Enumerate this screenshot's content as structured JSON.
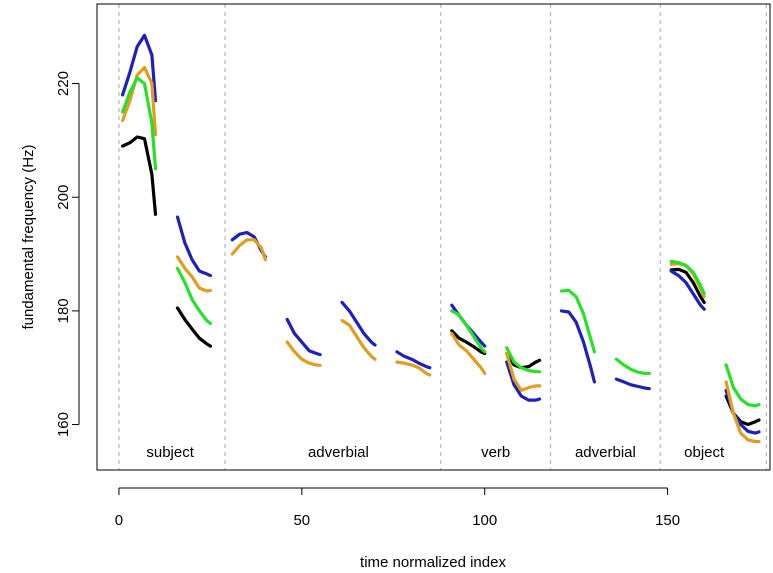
{
  "chart_data": {
    "type": "line",
    "xlabel": "time normalized index",
    "ylabel": "fundamental frequency (Hz)",
    "xlim": [
      -6,
      178
    ],
    "ylim": [
      152,
      234
    ],
    "x_ticks": [
      0,
      50,
      100,
      150
    ],
    "y_ticks": [
      160,
      180,
      200,
      220
    ],
    "segment_boundaries": [
      0,
      29,
      88,
      118,
      148,
      177
    ],
    "segments": [
      {
        "label": "subject",
        "center": 14
      },
      {
        "label": "adverbial",
        "center": 60
      },
      {
        "label": "verb",
        "center": 103
      },
      {
        "label": "adverbial",
        "center": 133
      },
      {
        "label": "object",
        "center": 160
      }
    ],
    "series": [
      {
        "color": "#000000",
        "pieces": [
          [
            [
              1,
              209
            ],
            [
              3,
              209.6
            ],
            [
              5,
              210.6
            ],
            [
              7,
              210.3
            ],
            [
              9,
              204
            ],
            [
              10,
              197
            ]
          ],
          [
            [
              16,
              180.5
            ],
            [
              18,
              178.5
            ],
            [
              20,
              176.8
            ],
            [
              22,
              175.2
            ],
            [
              24,
              174.2
            ],
            [
              25,
              173.8
            ]
          ],
          [
            [
              91,
              176.5
            ],
            [
              93,
              175.2
            ],
            [
              95,
              174.5
            ],
            [
              97,
              173.7
            ],
            [
              99,
              172.8
            ],
            [
              100,
              172.5
            ]
          ],
          [
            [
              106,
              172.5
            ],
            [
              108,
              170.5
            ],
            [
              110,
              170
            ],
            [
              112,
              170.2
            ],
            [
              114,
              171
            ],
            [
              115,
              171.3
            ]
          ],
          [
            [
              151,
              187.2
            ],
            [
              153,
              187.3
            ],
            [
              155,
              186.8
            ],
            [
              157,
              185
            ],
            [
              159,
              182.5
            ],
            [
              160,
              181.5
            ]
          ],
          [
            [
              166,
              165
            ],
            [
              168,
              162
            ],
            [
              170,
              160.5
            ],
            [
              172,
              160
            ],
            [
              174,
              160.5
            ],
            [
              175,
              160.8
            ]
          ]
        ]
      },
      {
        "color": "#1f1fbf",
        "pieces": [
          [
            [
              1,
              218
            ],
            [
              3,
              222
            ],
            [
              5,
              226.5
            ],
            [
              7,
              228.5
            ],
            [
              9,
              225
            ],
            [
              10,
              217
            ]
          ],
          [
            [
              16,
              196.5
            ],
            [
              18,
              192
            ],
            [
              20,
              189
            ],
            [
              22,
              187
            ],
            [
              24,
              186.5
            ],
            [
              25,
              186.2
            ]
          ],
          [
            [
              31,
              192.5
            ],
            [
              33,
              193.5
            ],
            [
              35,
              193.8
            ],
            [
              37,
              193
            ],
            [
              39,
              190.5
            ],
            [
              40,
              189.5
            ]
          ],
          [
            [
              46,
              178.5
            ],
            [
              48,
              176
            ],
            [
              50,
              174.5
            ],
            [
              52,
              173
            ],
            [
              54,
              172.5
            ],
            [
              55,
              172.3
            ]
          ],
          [
            [
              61,
              181.5
            ],
            [
              63,
              180
            ],
            [
              65,
              178
            ],
            [
              67,
              176
            ],
            [
              69,
              174.5
            ],
            [
              70,
              174
            ]
          ],
          [
            [
              76,
              172.8
            ],
            [
              78,
              172
            ],
            [
              80,
              171.5
            ],
            [
              82,
              170.8
            ],
            [
              84,
              170.2
            ],
            [
              85,
              170
            ]
          ],
          [
            [
              91,
              181
            ],
            [
              93,
              179.2
            ],
            [
              95,
              177.5
            ],
            [
              97,
              176
            ],
            [
              99,
              174.5
            ],
            [
              100,
              173.8
            ]
          ],
          [
            [
              106,
              171
            ],
            [
              108,
              167
            ],
            [
              110,
              165
            ],
            [
              112,
              164.3
            ],
            [
              114,
              164.3
            ],
            [
              115,
              164.5
            ]
          ],
          [
            [
              121,
              180
            ],
            [
              123,
              179.8
            ],
            [
              125,
              178
            ],
            [
              127,
              174.5
            ],
            [
              129,
              170
            ],
            [
              130,
              167.5
            ]
          ],
          [
            [
              136,
              168
            ],
            [
              138,
              167.5
            ],
            [
              140,
              167
            ],
            [
              142,
              166.7
            ],
            [
              144,
              166.4
            ],
            [
              145,
              166.3
            ]
          ],
          [
            [
              151,
              187
            ],
            [
              153,
              186.2
            ],
            [
              155,
              185
            ],
            [
              157,
              183
            ],
            [
              159,
              181
            ],
            [
              160,
              180.3
            ]
          ],
          [
            [
              166,
              166
            ],
            [
              168,
              162
            ],
            [
              170,
              160
            ],
            [
              172,
              158.8
            ],
            [
              174,
              158.5
            ],
            [
              175,
              158.7
            ]
          ]
        ]
      },
      {
        "color": "#e39d1c",
        "pieces": [
          [
            [
              1,
              213.5
            ],
            [
              3,
              217
            ],
            [
              5,
              221.5
            ],
            [
              7,
              222.8
            ],
            [
              9,
              220
            ],
            [
              10,
              211
            ]
          ],
          [
            [
              16,
              189.5
            ],
            [
              18,
              187.5
            ],
            [
              20,
              186
            ],
            [
              22,
              184
            ],
            [
              24,
              183.5
            ],
            [
              25,
              183.6
            ]
          ],
          [
            [
              31,
              190
            ],
            [
              33,
              191.5
            ],
            [
              35,
              192.5
            ],
            [
              37,
              192.5
            ],
            [
              39,
              191
            ],
            [
              40,
              189
            ]
          ],
          [
            [
              46,
              174.5
            ],
            [
              48,
              172.8
            ],
            [
              50,
              171.5
            ],
            [
              52,
              170.8
            ],
            [
              54,
              170.5
            ],
            [
              55,
              170.4
            ]
          ],
          [
            [
              61,
              178.3
            ],
            [
              63,
              177.5
            ],
            [
              65,
              175.5
            ],
            [
              67,
              173.5
            ],
            [
              69,
              172
            ],
            [
              70,
              171.5
            ]
          ],
          [
            [
              76,
              171
            ],
            [
              78,
              170.8
            ],
            [
              80,
              170.5
            ],
            [
              82,
              170
            ],
            [
              84,
              169
            ],
            [
              85,
              168.7
            ]
          ],
          [
            [
              91,
              176
            ],
            [
              93,
              174
            ],
            [
              95,
              173
            ],
            [
              97,
              171.5
            ],
            [
              99,
              170
            ],
            [
              100,
              169
            ]
          ],
          [
            [
              106,
              172.5
            ],
            [
              108,
              168
            ],
            [
              110,
              166
            ],
            [
              112,
              166.5
            ],
            [
              114,
              166.8
            ],
            [
              115,
              166.8
            ]
          ],
          [
            [
              151,
              188.2
            ],
            [
              153,
              188.3
            ],
            [
              155,
              188
            ],
            [
              157,
              186.5
            ],
            [
              159,
              184
            ],
            [
              160,
              182.5
            ]
          ],
          [
            [
              166,
              167.5
            ],
            [
              168,
              162
            ],
            [
              170,
              158.5
            ],
            [
              172,
              157.3
            ],
            [
              174,
              157
            ],
            [
              175,
              157
            ]
          ]
        ]
      },
      {
        "color": "#27e127",
        "pieces": [
          [
            [
              1,
              215
            ],
            [
              3,
              218.5
            ],
            [
              5,
              221
            ],
            [
              7,
              220
            ],
            [
              9,
              213
            ],
            [
              10,
              205
            ]
          ],
          [
            [
              16,
              187.5
            ],
            [
              18,
              185
            ],
            [
              20,
              182
            ],
            [
              22,
              180
            ],
            [
              24,
              178.3
            ],
            [
              25,
              177.8
            ]
          ],
          [
            [
              91,
              180
            ],
            [
              93,
              179.3
            ],
            [
              95,
              177.5
            ],
            [
              97,
              175.5
            ],
            [
              99,
              173.5
            ],
            [
              100,
              172.8
            ]
          ],
          [
            [
              106,
              173.5
            ],
            [
              108,
              171
            ],
            [
              110,
              170
            ],
            [
              112,
              169.5
            ],
            [
              114,
              169.3
            ],
            [
              115,
              169.3
            ]
          ],
          [
            [
              121,
              183.5
            ],
            [
              123,
              183.6
            ],
            [
              125,
              182.5
            ],
            [
              127,
              179.5
            ],
            [
              129,
              175
            ],
            [
              130,
              172.8
            ]
          ],
          [
            [
              136,
              171.5
            ],
            [
              138,
              170.5
            ],
            [
              140,
              169.7
            ],
            [
              142,
              169.2
            ],
            [
              144,
              169
            ],
            [
              145,
              169
            ]
          ],
          [
            [
              151,
              188.7
            ],
            [
              153,
              188.5
            ],
            [
              155,
              188
            ],
            [
              157,
              186.8
            ],
            [
              159,
              184.5
            ],
            [
              160,
              183
            ]
          ],
          [
            [
              166,
              170.5
            ],
            [
              168,
              166.5
            ],
            [
              170,
              164.5
            ],
            [
              172,
              163.5
            ],
            [
              174,
              163.3
            ],
            [
              175,
              163.5
            ]
          ]
        ]
      }
    ]
  }
}
